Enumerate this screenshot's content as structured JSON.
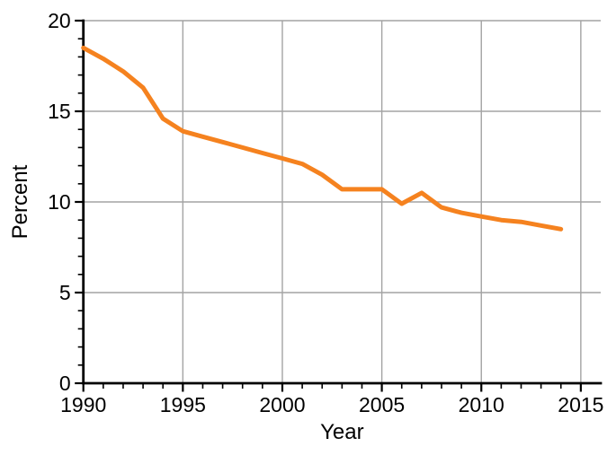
{
  "chart_data": {
    "type": "line",
    "title": "",
    "xlabel": "Year",
    "ylabel": "Percent",
    "xlim": [
      1990,
      2016
    ],
    "ylim": [
      0,
      20
    ],
    "x_major_ticks": [
      1990,
      1995,
      2000,
      2005,
      2010,
      2015
    ],
    "y_major_ticks": [
      0,
      5,
      10,
      15,
      20
    ],
    "x_minor_tick_step": 1,
    "y_minor_tick_step": 1,
    "grid": true,
    "legend": "none",
    "series": [
      {
        "name": "percent-line",
        "color": "#F5821F",
        "x": [
          1990,
          1991,
          1992,
          1993,
          1994,
          1995,
          1996,
          1997,
          1998,
          1999,
          2000,
          2001,
          2002,
          2003,
          2004,
          2005,
          2006,
          2007,
          2008,
          2009,
          2010,
          2011,
          2012,
          2013,
          2014
        ],
        "values": [
          18.5,
          17.9,
          17.2,
          16.3,
          14.6,
          13.9,
          13.6,
          13.3,
          13.0,
          12.7,
          12.4,
          12.1,
          11.5,
          10.7,
          10.7,
          10.7,
          9.9,
          10.5,
          9.7,
          9.4,
          9.2,
          9.0,
          8.9,
          8.7,
          8.5
        ]
      }
    ],
    "colors": {
      "line": "#F5821F",
      "grid": "#A3A3A3",
      "axis": "#000000",
      "text": "#000000",
      "background": "#FFFFFF"
    }
  }
}
